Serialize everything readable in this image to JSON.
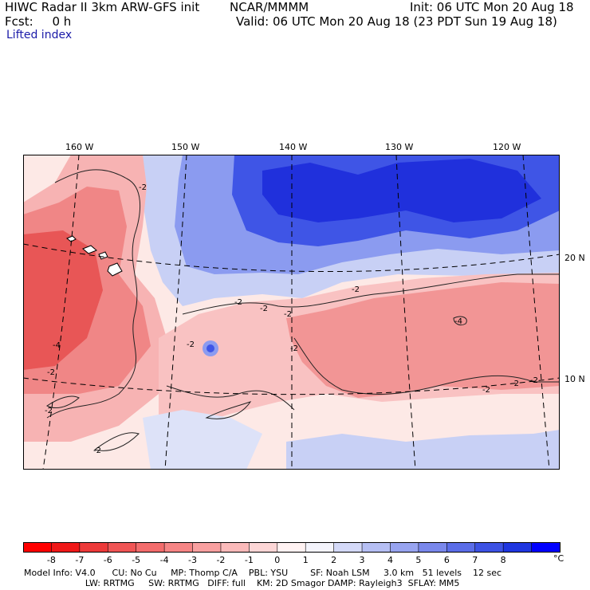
{
  "header": {
    "title": "HIWC Radar II 3km ARW-GFS init",
    "source": "NCAR/MMMM",
    "init": "Init: 06 UTC Mon 20 Aug 18",
    "fcst": "Fcst:     0 h",
    "valid": "Valid: 06 UTC Mon 20 Aug 18 (23 PDT Sun 19 Aug 18)",
    "field": "Lifted index"
  },
  "map": {
    "longitude_labels": [
      "160 W",
      "150 W",
      "140 W",
      "130 W",
      "120 W"
    ],
    "latitude_labels": [
      "20 N",
      "10 N"
    ],
    "contour_labels": [
      "-2",
      "-2",
      "-2",
      "-2",
      "-2",
      "-2",
      "-2",
      "-2",
      "-2",
      "-2",
      "-4",
      "-4",
      "-2",
      "-2",
      "-2"
    ],
    "colors": {
      "strong_neg": "#e63a3a",
      "mid_neg": "#f38a8a",
      "weak_neg": "#fbc9c9",
      "neutral": "#fff0ee",
      "weak_pos": "#c4cdf5",
      "mid_pos": "#6f82ee",
      "strong_pos": "#1f2ee0"
    }
  },
  "colorbar": {
    "ticks": [
      "-8",
      "-7",
      "-6",
      "-5",
      "-4",
      "-3",
      "-2",
      "-1",
      "0",
      "1",
      "2",
      "3",
      "4",
      "5",
      "6",
      "7",
      "8"
    ],
    "unit": "°C",
    "colors": [
      "#ff0000",
      "#f01818",
      "#ed3a3a",
      "#f05555",
      "#f36c6c",
      "#f68585",
      "#f9a0a0",
      "#fbbaba",
      "#fdd6d6",
      "#fff2f2",
      "#f4f4fc",
      "#d4d9f8",
      "#b6bff4",
      "#98a4f0",
      "#7a88ec",
      "#5b6de8",
      "#3d52e4",
      "#1f36e0",
      "#0000ff"
    ]
  },
  "footer": {
    "line1": "Model Info: V4.0      CU: No Cu     MP: Thomp C/A    PBL: YSU        SF: Noah LSM     3.0 km   51 levels    12 sec",
    "line2": "                      LW: RRTMG     SW: RRTMG   DIFF: full    KM: 2D Smagor DAMP: Rayleigh3  SFLAY: MM5"
  }
}
